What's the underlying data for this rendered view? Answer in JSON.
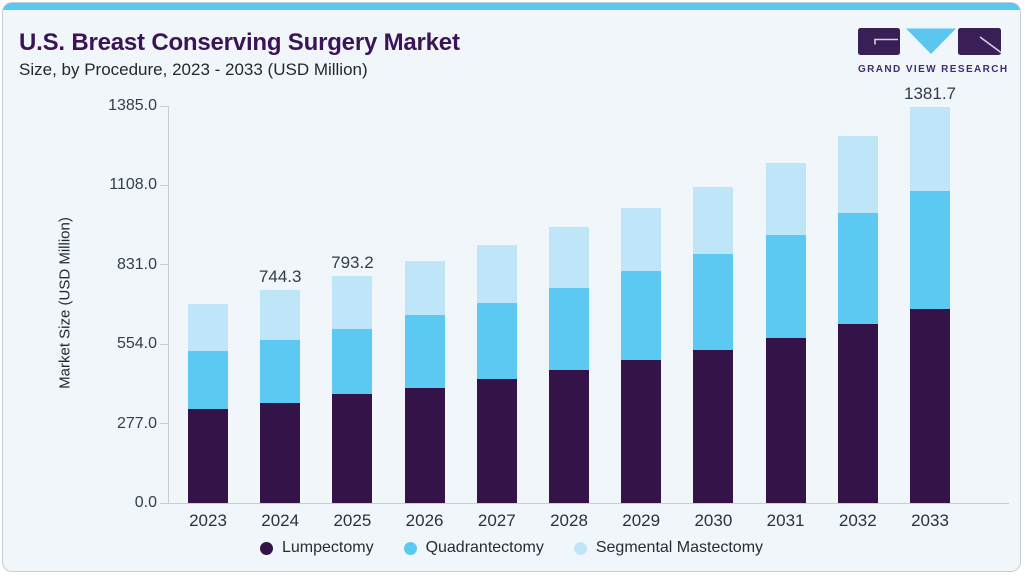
{
  "page": {
    "title": "U.S. Breast Conserving Surgery Market",
    "subtitle": "Size, by Procedure, 2023 - 2033 (USD Million)"
  },
  "logo": {
    "text": "GRAND VIEW RESEARCH"
  },
  "colors": {
    "accent_strip": "#58c7f2",
    "card_background": "#f0f6fa",
    "card_border": "#c6ced5",
    "title_text": "#3b1458",
    "axis_line": "#c6ced5",
    "logo_purple": "#3a1f56",
    "logo_triangle": "#5bc7f0"
  },
  "chart_data": {
    "type": "bar",
    "stacked": true,
    "title": "U.S. Breast Conserving Surgery Market",
    "subtitle": "Size, by Procedure, 2023 - 2033 (USD Million)",
    "ylabel": "Market Size (USD Million)",
    "xlabel": "",
    "grid": false,
    "legend_position": "bottom",
    "ylim": [
      0,
      1385
    ],
    "y_tick_values": [
      0,
      277,
      554,
      831,
      1108,
      1385
    ],
    "y_tick_labels": [
      "0.0",
      "277.0",
      "554.0",
      "831.0",
      "1108.0",
      "1385.0"
    ],
    "categories": [
      "2023",
      "2024",
      "2025",
      "2026",
      "2027",
      "2028",
      "2029",
      "2030",
      "2031",
      "2032",
      "2033"
    ],
    "series": [
      {
        "name": "Lumpectomy",
        "color": "#341349",
        "values": [
          328.1,
          349.9,
          380.2,
          402.1,
          432.7,
          465.5,
          499.4,
          532.2,
          574.8,
          623.3,
          675.4
        ]
      },
      {
        "name": "Quadrantectomy",
        "color": "#5cc9f2",
        "values": [
          203.0,
          218.7,
          227.4,
          252.9,
          266.1,
          285.4,
          308.7,
          336.4,
          359.4,
          387.5,
          414.5
        ]
      },
      {
        "name": "Segmental Mastectomy",
        "color": "#bfe6f8",
        "values": [
          161.5,
          175.7,
          185.6,
          190.6,
          201.5,
          212.5,
          222.3,
          234.7,
          253.0,
          268.6,
          291.8
        ]
      }
    ],
    "bar_total_labels": [
      "",
      "744.3",
      "793.2",
      "",
      "",
      "",
      "",
      "",
      "",
      "",
      "1381.7"
    ]
  }
}
